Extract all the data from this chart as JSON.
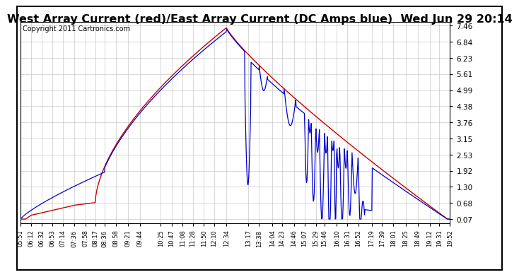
{
  "title": "West Array Current (red)/East Array Current (DC Amps blue)  Wed Jun 29 20:14",
  "copyright": "Copyright 2011 Cartronics.com",
  "ylabel_right_ticks": [
    7.46,
    6.84,
    6.23,
    5.61,
    4.99,
    4.38,
    3.76,
    3.15,
    2.53,
    1.92,
    1.3,
    0.68,
    0.07
  ],
  "ymin": 0.07,
  "ymax": 7.46,
  "x_labels": [
    "05:51",
    "06:12",
    "06:32",
    "06:53",
    "07:14",
    "07:36",
    "07:58",
    "08:17",
    "08:36",
    "08:58",
    "09:21",
    "09:44",
    "10:25",
    "10:47",
    "11:08",
    "11:28",
    "11:50",
    "12:10",
    "12:34",
    "13:17",
    "13:38",
    "14:04",
    "14:23",
    "14:46",
    "15:07",
    "15:29",
    "15:46",
    "16:10",
    "16:31",
    "16:52",
    "17:19",
    "17:39",
    "18:01",
    "18:25",
    "18:49",
    "19:12",
    "19:31",
    "19:52"
  ],
  "bg_color": "#ffffff",
  "plot_bg_color": "#ffffff",
  "grid_color": "#bbbbbb",
  "line_red_color": "#cc0000",
  "line_blue_color": "#0000cc",
  "title_fontsize": 11.5,
  "copyright_fontsize": 7
}
